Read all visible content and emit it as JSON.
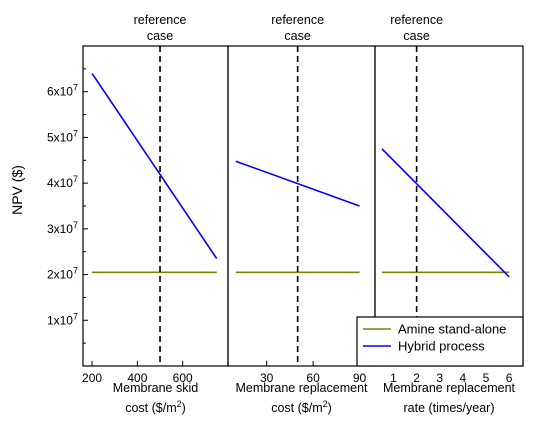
{
  "chart_data": {
    "type": "line",
    "ylabel": "NPV ($)",
    "ylim": [
      0,
      70000000
    ],
    "y_ticks": [
      {
        "value": 10000000,
        "mant": "1x10",
        "exp": "7"
      },
      {
        "value": 20000000,
        "mant": "2x10",
        "exp": "7"
      },
      {
        "value": 30000000,
        "mant": "3x10",
        "exp": "7"
      },
      {
        "value": 40000000,
        "mant": "4x10",
        "exp": "7"
      },
      {
        "value": 50000000,
        "mant": "5x10",
        "exp": "7"
      },
      {
        "value": 60000000,
        "mant": "6x10",
        "exp": "7"
      }
    ],
    "legend": {
      "placement": "bottom-right",
      "items": [
        {
          "name": "Amine stand-alone",
          "color": "#808000"
        },
        {
          "name": "Hybrid process",
          "color": "#0000ff"
        }
      ]
    },
    "panels": [
      {
        "xlabel_line1": "Membrane skid",
        "xlabel_line2_main": "cost ($/m",
        "xlabel_line2_sup": "2",
        "xlabel_line2_end": ")",
        "xlim": [
          160,
          800
        ],
        "x_ticks": [
          200,
          400,
          600
        ],
        "reference_label_1": "reference",
        "reference_label_2": "case",
        "reference_x": 500,
        "series": [
          {
            "name": "Amine stand-alone",
            "color": "#808000",
            "x": [
              200,
              750
            ],
            "y": [
              20500000,
              20500000
            ]
          },
          {
            "name": "Hybrid process",
            "color": "#0000ff",
            "x": [
              200,
              750
            ],
            "y": [
              64000000,
              23500000
            ]
          }
        ]
      },
      {
        "xlabel_line1": "Membrane replacement",
        "xlabel_line2_main": "cost ($/m",
        "xlabel_line2_sup": "2",
        "xlabel_line2_end": ")",
        "xlim": [
          5,
          100
        ],
        "x_ticks": [
          30,
          60,
          90
        ],
        "reference_label_1": "reference",
        "reference_label_2": "case",
        "reference_x": 50,
        "series": [
          {
            "name": "Amine stand-alone",
            "color": "#808000",
            "x": [
              10,
              90
            ],
            "y": [
              20500000,
              20500000
            ]
          },
          {
            "name": "Hybrid process",
            "color": "#0000ff",
            "x": [
              10,
              90
            ],
            "y": [
              44800000,
              35000000
            ]
          }
        ]
      },
      {
        "xlabel_line1": "Membrane replacement",
        "xlabel_line2_main": "rate (times/year)",
        "xlabel_line2_sup": "",
        "xlabel_line2_end": "",
        "xlim": [
          0.2,
          6.6
        ],
        "x_ticks": [
          1,
          2,
          3,
          4,
          5,
          6
        ],
        "reference_label_1": "reference",
        "reference_label_2": "case",
        "reference_x": 2,
        "series": [
          {
            "name": "Amine stand-alone",
            "color": "#808000",
            "x": [
              0.5,
              6
            ],
            "y": [
              20500000,
              20500000
            ]
          },
          {
            "name": "Hybrid process",
            "color": "#0000ff",
            "x": [
              0.5,
              6
            ],
            "y": [
              47500000,
              19500000
            ]
          }
        ]
      }
    ]
  }
}
